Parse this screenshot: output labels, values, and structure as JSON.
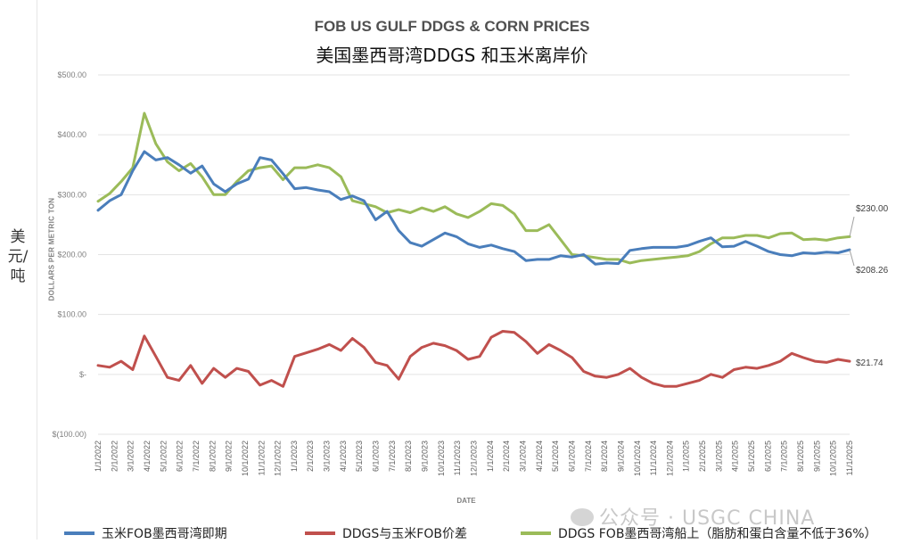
{
  "title_en": "FOB US GULF DDGS & CORN PRICES",
  "title_cn": "美国墨西哥湾DDGS 和玉米离岸价",
  "unit_label": "美元/吨",
  "watermark": "公众号 · USGC CHINA",
  "chart_data": {
    "type": "line",
    "xlabel": "DATE",
    "ylabel": "DOLLARS PER METRIC TON",
    "ylim": [
      -100,
      500
    ],
    "yticks": [
      "$500.00",
      "$400.00",
      "$300.00",
      "$200.00",
      "$100.00",
      "$-",
      "$(100.00)"
    ],
    "ytick_values": [
      500,
      400,
      300,
      200,
      100,
      0,
      -100
    ],
    "xticks": [
      "1/1/2022",
      "2/1/2022",
      "3/1/2022",
      "4/1/2022",
      "5/1/2022",
      "6/1/2022",
      "7/1/2022",
      "8/1/2022",
      "9/1/2022",
      "10/1/2022",
      "11/1/2022",
      "12/1/2022",
      "1/1/2023",
      "2/1/2023",
      "3/1/2023",
      "4/1/2023",
      "5/1/2023",
      "6/1/2023",
      "7/1/2023",
      "8/1/2023",
      "9/1/2023",
      "10/1/2023",
      "11/1/2023",
      "12/1/2023",
      "1/1/2024",
      "2/1/2024",
      "3/1/2024",
      "4/1/2024",
      "5/1/2024",
      "6/1/2024",
      "7/1/2024",
      "8/1/2024",
      "9/1/2024",
      "10/1/2024",
      "11/1/2024",
      "12/1/2024",
      "1/1/2025",
      "2/1/2025",
      "3/1/2025",
      "4/1/2025",
      "5/1/2025",
      "6/1/2025",
      "7/1/2025",
      "8/1/2025",
      "9/1/2025",
      "10/1/2025",
      "11/1/2025"
    ],
    "grid": true,
    "series": [
      {
        "name": "玉米FOB墨西哥湾即期",
        "color": "#4a7ebb",
        "end_label": "$208.26",
        "values": [
          274,
          290,
          300,
          340,
          372,
          358,
          362,
          350,
          336,
          348,
          318,
          305,
          318,
          326,
          362,
          358,
          335,
          310,
          312,
          308,
          305,
          292,
          298,
          290,
          258,
          272,
          240,
          220,
          214,
          225,
          236,
          230,
          218,
          212,
          216,
          210,
          205,
          190,
          192,
          192,
          198,
          196,
          200,
          184,
          186,
          185,
          207,
          210,
          212,
          212,
          212,
          215,
          222,
          228,
          213,
          214,
          222,
          214,
          205,
          200,
          198,
          203,
          202,
          204,
          203,
          208
        ]
      },
      {
        "name": "DDGS与玉米FOB价差",
        "color": "#c0504d",
        "end_label": "$21.74",
        "values": [
          15,
          12,
          22,
          8,
          64,
          30,
          -5,
          -10,
          15,
          -15,
          10,
          -5,
          10,
          5,
          -18,
          -10,
          -20,
          30,
          36,
          42,
          50,
          40,
          60,
          45,
          20,
          15,
          -8,
          30,
          45,
          52,
          48,
          40,
          25,
          30,
          62,
          72,
          70,
          55,
          35,
          50,
          40,
          28,
          5,
          -3,
          -5,
          0,
          10,
          -5,
          -15,
          -20,
          -20,
          -15,
          -10,
          0,
          -5,
          8,
          12,
          10,
          15,
          22,
          35,
          28,
          22,
          20,
          25,
          22
        ]
      },
      {
        "name": "DDGS FOB墨西哥湾船上（脂肪和蛋白含量不低于36%）",
        "color": "#9bbb59",
        "end_label": "$230.00",
        "values": [
          289,
          302,
          322,
          345,
          436,
          385,
          355,
          340,
          352,
          330,
          300,
          300,
          322,
          340,
          345,
          348,
          325,
          345,
          345,
          350,
          345,
          330,
          290,
          285,
          280,
          270,
          275,
          270,
          278,
          272,
          280,
          268,
          262,
          272,
          285,
          282,
          268,
          240,
          240,
          250,
          225,
          200,
          198,
          195,
          192,
          192,
          186,
          190,
          192,
          194,
          196,
          198,
          205,
          218,
          228,
          228,
          232,
          232,
          228,
          235,
          236,
          225,
          226,
          224,
          228,
          230
        ]
      }
    ]
  }
}
